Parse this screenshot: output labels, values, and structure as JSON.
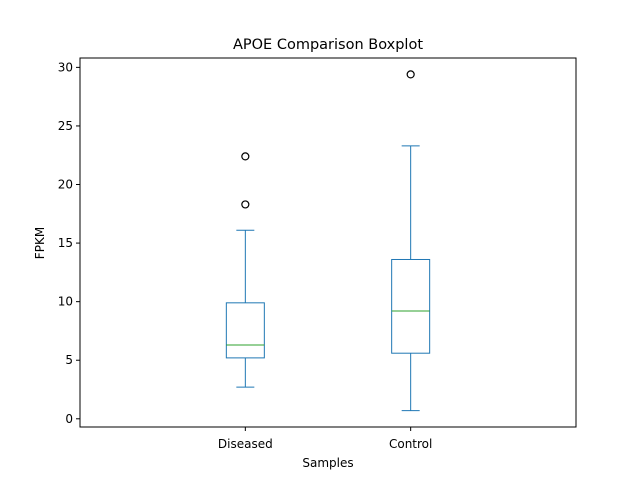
{
  "chart_data": {
    "type": "boxplot",
    "title": "APOE Comparison Boxplot",
    "xlabel": "Samples",
    "ylabel": "FPKM",
    "ylim": [
      -0.7,
      30.8
    ],
    "yticks": [
      0,
      5,
      10,
      15,
      20,
      25,
      30
    ],
    "categories": [
      "Diseased",
      "Control"
    ],
    "boxes": [
      {
        "name": "Diseased",
        "whisker_low": 2.7,
        "q1": 5.2,
        "median": 6.3,
        "q3": 9.9,
        "whisker_high": 16.1,
        "outliers": [
          18.3,
          22.4
        ]
      },
      {
        "name": "Control",
        "whisker_low": 0.7,
        "q1": 5.6,
        "median": 9.2,
        "q3": 13.6,
        "whisker_high": 23.3,
        "outliers": [
          29.4
        ]
      }
    ],
    "colors": {
      "box": "#1f77b4",
      "median": "#2ca02c",
      "outlier": "#000000"
    },
    "grid": false
  }
}
